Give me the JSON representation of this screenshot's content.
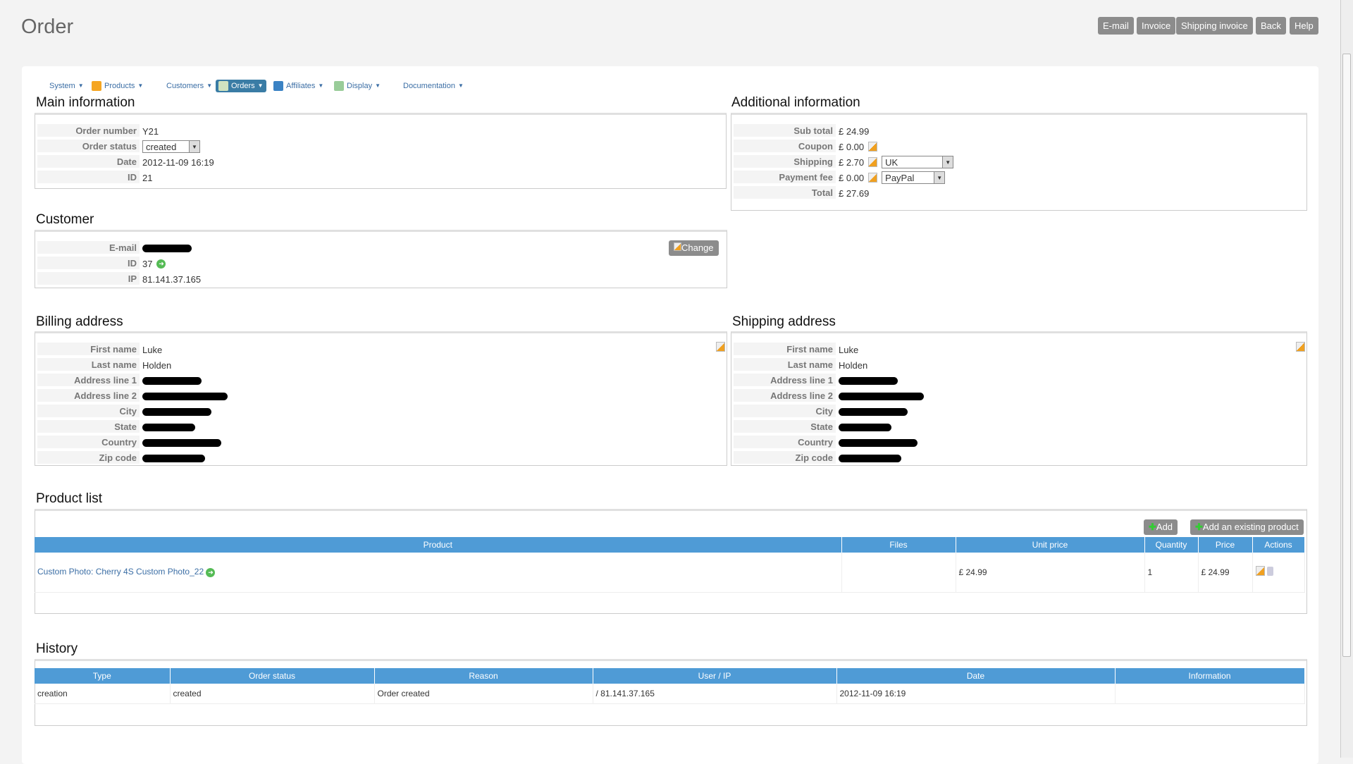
{
  "page_title": "Order",
  "top_buttons": [
    "E-mail",
    "Invoice",
    "Shipping invoice",
    "Back",
    "Help"
  ],
  "menu": [
    {
      "label": "System",
      "icon": "none"
    },
    {
      "label": "Products",
      "icon": "box-icon"
    },
    {
      "label": "Customers",
      "icon": "none"
    },
    {
      "label": "Orders",
      "icon": "orders-icon",
      "active": true
    },
    {
      "label": "Affiliates",
      "icon": "affiliates-icon"
    },
    {
      "label": "Display",
      "icon": "display-icon"
    },
    {
      "label": "Documentation",
      "icon": "none"
    }
  ],
  "main_info": {
    "heading": "Main information",
    "rows": [
      {
        "label": "Order number",
        "value": "Y21"
      },
      {
        "label": "Order status",
        "select": "created"
      },
      {
        "label": "Date",
        "value": "2012-11-09 16:19"
      },
      {
        "label": "ID",
        "value": "21"
      }
    ]
  },
  "additional_info": {
    "heading": "Additional information",
    "rows": [
      {
        "label": "Sub total",
        "value": "£ 24.99"
      },
      {
        "label": "Coupon",
        "value": "£ 0.00",
        "edit": true
      },
      {
        "label": "Shipping",
        "value": "£ 2.70",
        "edit": true,
        "select": "UK"
      },
      {
        "label": "Payment fee",
        "value": "£ 0.00",
        "edit": true,
        "select": "PayPal"
      },
      {
        "label": "Total",
        "value": "£ 27.69"
      }
    ]
  },
  "customer": {
    "heading": "Customer",
    "change_label": "Change",
    "rows": [
      {
        "label": "E-mail",
        "redacted": true
      },
      {
        "label": "ID",
        "value": "37",
        "go": true
      },
      {
        "label": "IP",
        "value": "81.141.37.165"
      }
    ]
  },
  "billing": {
    "heading": "Billing address",
    "rows": [
      {
        "label": "First name",
        "value": "Luke"
      },
      {
        "label": "Last name",
        "value": "Holden"
      },
      {
        "label": "Address line 1",
        "redacted": true
      },
      {
        "label": "Address line 2",
        "redacted": true
      },
      {
        "label": "City",
        "redacted": true
      },
      {
        "label": "State",
        "redacted": true
      },
      {
        "label": "Country",
        "redacted": true
      },
      {
        "label": "Zip code",
        "redacted": true
      }
    ]
  },
  "shipping": {
    "heading": "Shipping address",
    "rows": [
      {
        "label": "First name",
        "value": "Luke"
      },
      {
        "label": "Last name",
        "value": "Holden"
      },
      {
        "label": "Address line 1",
        "redacted": true
      },
      {
        "label": "Address line 2",
        "redacted": true
      },
      {
        "label": "City",
        "redacted": true
      },
      {
        "label": "State",
        "redacted": true
      },
      {
        "label": "Country",
        "redacted": true
      },
      {
        "label": "Zip code",
        "redacted": true
      }
    ]
  },
  "products": {
    "heading": "Product list",
    "add_label": "Add",
    "add_existing_label": "Add an existing product",
    "columns": [
      "Product",
      "Files",
      "Unit price",
      "Quantity",
      "Price",
      "Actions"
    ],
    "rows": [
      {
        "product": "Custom Photo: Cherry 4S Custom Photo_22",
        "files": "",
        "unit_price": "£ 24.99",
        "quantity": "1",
        "price": "£ 24.99"
      }
    ]
  },
  "history": {
    "heading": "History",
    "columns": [
      "Type",
      "Order status",
      "Reason",
      "User / IP",
      "Date",
      "Information"
    ],
    "rows": [
      [
        "creation",
        "created",
        "Order created",
        "/ 81.141.37.165",
        "2012-11-09 16:19",
        ""
      ]
    ]
  },
  "colors": {
    "table_header": "#4f9bd6",
    "button": "#8c8c8c",
    "menu_active": "#3a7ca5",
    "link": "#3b6ea5"
  }
}
